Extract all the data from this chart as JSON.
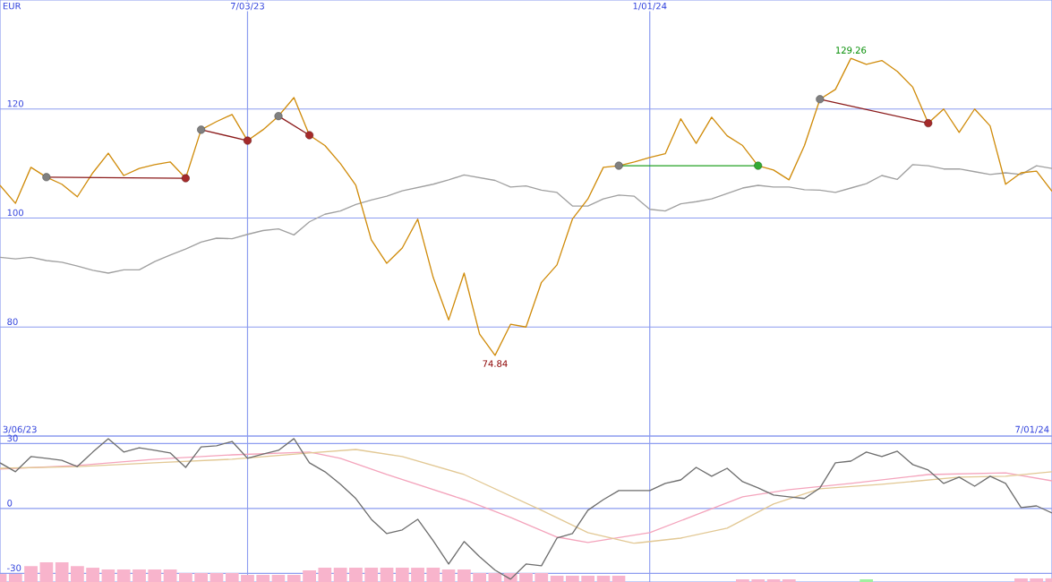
{
  "chart_data": [
    {
      "type": "line",
      "ylabel": "EUR",
      "grid": true,
      "x": [
        "2023-03-13",
        "2023-03-20",
        "2023-03-27",
        "2023-04-03",
        "2023-04-10",
        "2023-04-17",
        "2023-04-24",
        "2023-05-01",
        "2023-05-08",
        "2023-05-15",
        "2023-05-22",
        "2023-05-29",
        "2023-06-05",
        "2023-06-12",
        "2023-06-19",
        "2023-06-26",
        "2023-07-03",
        "2023-07-10",
        "2023-07-17",
        "2023-07-24",
        "2023-07-31",
        "2023-08-07",
        "2023-08-14",
        "2023-08-21",
        "2023-08-28",
        "2023-09-04",
        "2023-09-11",
        "2023-09-18",
        "2023-09-25",
        "2023-10-02",
        "2023-10-09",
        "2023-10-16",
        "2023-10-23",
        "2023-10-30",
        "2023-11-06",
        "2023-11-13",
        "2023-11-20",
        "2023-11-27",
        "2023-12-04",
        "2023-12-11",
        "2023-12-18",
        "2023-12-25",
        "2024-01-01",
        "2024-01-08",
        "2024-01-15",
        "2024-01-22",
        "2024-01-29",
        "2024-02-05",
        "2024-02-12",
        "2024-02-19",
        "2024-02-26",
        "2024-03-04",
        "2024-03-11",
        "2024-03-18",
        "2024-03-25",
        "2024-04-01",
        "2024-04-08",
        "2024-04-15",
        "2024-04-22",
        "2024-04-29",
        "2024-05-06",
        "2024-05-13",
        "2024-05-20",
        "2024-05-27",
        "2024-06-03",
        "2024-06-10",
        "2024-06-17",
        "2024-06-24",
        "2024-07-01"
      ],
      "xlim": [
        "2023-03-13",
        "2024-07-01"
      ],
      "ylim": [
        60,
        140
      ],
      "xticks": [
        {
          "value": "2023-07-03",
          "label": "7/03/23"
        },
        {
          "value": "2024-01-01",
          "label": "1/01/24"
        }
      ],
      "yticks": [
        80,
        100,
        120
      ],
      "annotations": [
        {
          "text": "129.26",
          "x": "2024-04-01",
          "y": 129.26
        },
        {
          "text": "74.84",
          "x": "2023-10-23",
          "y": 74.84
        }
      ],
      "series": [
        {
          "color": "#a0a0a0",
          "values": [
            92.8,
            92.5,
            92.8,
            92.2,
            91.9,
            91.2,
            90.4,
            89.9,
            90.5,
            90.5,
            92.0,
            93.2,
            94.3,
            95.6,
            96.3,
            96.2,
            97.0,
            97.7,
            98.0,
            96.9,
            99.3,
            100.7,
            101.3,
            102.5,
            103.3,
            104.0,
            105.0,
            105.6,
            106.2,
            107.0,
            107.9,
            107.4,
            106.9,
            105.7,
            105.9,
            105.1,
            104.7,
            102.2,
            102.2,
            103.5,
            104.2,
            104.0,
            101.6,
            101.3,
            102.6,
            103.0,
            103.5,
            104.5,
            105.5,
            106.0,
            105.7,
            105.7,
            105.2,
            105.1,
            104.7,
            105.5,
            106.3,
            107.8,
            107.1,
            109.8,
            109.6,
            109.0,
            109.0,
            108.5,
            108.0,
            108.3,
            108.0,
            109.6,
            109.1
          ]
        },
        {
          "color": "#d08c0c",
          "values": [
            106.0,
            102.7,
            109.3,
            107.5,
            106.2,
            103.9,
            108.3,
            111.9,
            107.8,
            109.1,
            109.8,
            110.3,
            107.3,
            116.2,
            117.7,
            119.0,
            114.2,
            116.2,
            118.7,
            122.1,
            115.2,
            113.3,
            110.0,
            106.0,
            96.0,
            91.7,
            94.5,
            99.8,
            89.1,
            81.3,
            89.9,
            78.7,
            74.8,
            80.5,
            80.0,
            88.2,
            91.4,
            99.8,
            103.5,
            109.3,
            109.6,
            110.3,
            111.1,
            111.8,
            118.2,
            113.7,
            118.5,
            115.1,
            113.3,
            109.6,
            108.8,
            107.0,
            113.3,
            121.8,
            123.6,
            129.3,
            128.2,
            128.9,
            126.9,
            124.0,
            117.4,
            120.0,
            115.7,
            120.0,
            116.9,
            106.2,
            108.3,
            108.6,
            104.9
          ]
        },
        {
          "color": "#8b1a1a",
          "marker": "circle",
          "x": [
            "2023-04-03",
            "2023-06-05"
          ],
          "values": [
            107.5,
            107.3
          ],
          "colors": [
            "#808080",
            "#a52a2a"
          ]
        },
        {
          "color": "#8b1a1a",
          "marker": "circle",
          "x": [
            "2023-06-12",
            "2023-07-03"
          ],
          "values": [
            116.2,
            114.2
          ],
          "colors": [
            "#808080",
            "#a52a2a"
          ]
        },
        {
          "color": "#8b1a1a",
          "marker": "circle",
          "x": [
            "2023-07-17",
            "2023-07-31"
          ],
          "values": [
            118.7,
            115.2
          ],
          "colors": [
            "#808080",
            "#a52a2a"
          ]
        },
        {
          "color": "#22a022",
          "marker": "circle",
          "x": [
            "2023-12-18",
            "2024-02-19"
          ],
          "values": [
            109.6,
            109.6
          ],
          "colors": [
            "#808080",
            "#33aa33"
          ]
        },
        {
          "color": "#8b1a1a",
          "marker": "circle",
          "x": [
            "2024-03-18",
            "2024-05-06"
          ],
          "values": [
            121.8,
            117.4
          ],
          "colors": [
            "#808080",
            "#a52a2a"
          ]
        }
      ]
    },
    {
      "type": "line",
      "grid": true,
      "tick_labels": "y",
      "x": [
        "2023-03-13",
        "2023-03-20",
        "2023-03-27",
        "2023-04-03",
        "2023-04-10",
        "2023-04-17",
        "2023-04-24",
        "2023-05-01",
        "2023-05-08",
        "2023-05-15",
        "2023-05-22",
        "2023-05-29",
        "2023-06-05",
        "2023-06-12",
        "2023-06-19",
        "2023-06-26",
        "2023-07-03",
        "2023-07-10",
        "2023-07-17",
        "2023-07-24",
        "2023-07-31",
        "2023-08-07",
        "2023-08-14",
        "2023-08-21",
        "2023-08-28",
        "2023-09-04",
        "2023-09-11",
        "2023-09-18",
        "2023-09-25",
        "2023-10-02",
        "2023-10-09",
        "2023-10-16",
        "2023-10-23",
        "2023-10-30",
        "2023-11-06",
        "2023-11-13",
        "2023-11-20",
        "2023-11-27",
        "2023-12-04",
        "2023-12-11",
        "2023-12-18",
        "2023-12-25",
        "2024-01-01",
        "2024-01-08",
        "2024-01-15",
        "2024-01-22",
        "2024-01-29",
        "2024-02-05",
        "2024-02-12",
        "2024-02-19",
        "2024-02-26",
        "2024-03-04",
        "2024-03-11",
        "2024-03-18",
        "2024-03-25",
        "2024-04-01",
        "2024-04-08",
        "2024-04-15",
        "2024-04-22",
        "2024-04-29",
        "2024-05-06",
        "2024-05-13",
        "2024-05-20",
        "2024-05-27",
        "2024-06-03",
        "2024-06-10",
        "2024-06-17",
        "2024-06-24",
        "2024-07-01"
      ],
      "xlim": [
        "2023-03-13",
        "2024-07-01"
      ],
      "ylim": [
        -34,
        33.5
      ],
      "xticks": [
        {
          "value": "2023-07-03",
          "label": null
        },
        {
          "value": "2024-01-01",
          "label": null
        }
      ],
      "yticks": [
        -30,
        0,
        30
      ],
      "annotations": [
        "3/06/23",
        "7/01/24"
      ],
      "series": [
        {
          "type": "bar",
          "colors": [
            "#f8b4cc",
            "#f8b4cc",
            "#f8b4cc",
            "#f8b4cc",
            "#f8b4cc",
            "#f8b4cc",
            "#f8b4cc",
            "#f8b4cc",
            "#f8b4cc",
            "#f8b4cc",
            "#f8b4cc",
            "#f8b4cc",
            "#f8b4cc",
            "#f8b4cc",
            "#f8b4cc",
            "#f8b4cc",
            "#f8b4cc",
            "#f8b4cc",
            "#f8b4cc",
            "#f8b4cc",
            "#f8b4cc",
            "#f8b4cc",
            "#f8b4cc",
            "#f8b4cc",
            "#f8b4cc",
            "#f8b4cc",
            "#f8b4cc",
            "#f8b4cc",
            "#f8b4cc",
            "#f8b4cc",
            "#f8b4cc",
            "#f8b4cc",
            "#f8b4cc",
            "#f8b4cc",
            "#f8b4cc",
            "#f8b4cc",
            "#f8b4cc",
            "#f8b4cc",
            "#f8b4cc",
            "#f8b4cc",
            "#f8b4cc",
            null,
            null,
            null,
            null,
            null,
            null,
            null,
            "#f8b4cc",
            "#f8b4cc",
            "#f8b4cc",
            "#f8b4cc",
            null,
            null,
            null,
            null,
            "#a0f0a0",
            null,
            null,
            null,
            null,
            null,
            null,
            null,
            null,
            null,
            "#f8b4cc",
            "#f8b4cc",
            "#f8b4cc"
          ],
          "base": [
            -34,
            -34,
            -34,
            -34,
            -34,
            -34,
            -34,
            -34,
            -34,
            -34,
            -34,
            -34,
            -34,
            -34,
            -34,
            -34,
            -34,
            -34,
            -34,
            -34,
            -34,
            -34,
            -34,
            -34,
            -34,
            -34,
            -34,
            -34,
            -34,
            -34,
            -34,
            -34,
            -34,
            -34,
            -34,
            -34,
            -34,
            -34,
            -34,
            -34,
            -34,
            null,
            null,
            null,
            null,
            null,
            null,
            null,
            -34,
            -34,
            -34,
            -34,
            null,
            null,
            null,
            null,
            -34,
            null,
            null,
            null,
            null,
            null,
            null,
            null,
            null,
            null,
            -34,
            -34,
            -34
          ],
          "values": [
            3.7,
            3.7,
            7.4,
            9.1,
            9.1,
            7.4,
            6.6,
            5.8,
            5.8,
            5.8,
            5.8,
            5.8,
            4.1,
            4.1,
            4.1,
            4.1,
            3.3,
            3.3,
            3.3,
            3.3,
            5.4,
            6.6,
            6.6,
            6.6,
            6.6,
            6.6,
            6.6,
            6.6,
            6.6,
            5.8,
            5.8,
            4.1,
            4.1,
            4.1,
            4.1,
            4.1,
            2.9,
            2.9,
            2.9,
            2.9,
            2.9,
            null,
            null,
            null,
            null,
            null,
            null,
            null,
            1.2,
            1.2,
            1.2,
            1.2,
            null,
            null,
            null,
            null,
            1.2,
            null,
            null,
            null,
            null,
            null,
            null,
            null,
            null,
            null,
            1.7,
            1.7,
            1.7
          ]
        },
        {
          "color": "#f4a4bc",
          "x": [
            "2023-03-13",
            "2023-04-17",
            "2023-05-22",
            "2023-06-26",
            "2023-07-31",
            "2023-08-14",
            "2023-09-04",
            "2023-10-09",
            "2023-10-30",
            "2023-11-20",
            "2023-12-04",
            "2024-01-01",
            "2024-01-22",
            "2024-02-12",
            "2024-03-04",
            "2024-04-01",
            "2024-05-06",
            "2024-06-10",
            "2024-07-01"
          ],
          "values": [
            18.2,
            19.9,
            22.8,
            24.8,
            26.1,
            23.2,
            15.7,
            4.1,
            -4.1,
            -13.2,
            -15.7,
            -11.2,
            -2.9,
            5.4,
            8.7,
            11.6,
            15.7,
            16.5,
            12.8
          ]
        },
        {
          "color": "#e2c894",
          "x": [
            "2023-03-13",
            "2023-04-17",
            "2023-05-22",
            "2023-06-26",
            "2023-07-31",
            "2023-08-21",
            "2023-09-11",
            "2023-10-09",
            "2023-11-13",
            "2023-12-04",
            "2023-12-25",
            "2024-01-15",
            "2024-02-05",
            "2024-02-26",
            "2024-03-18",
            "2024-04-15",
            "2024-05-20",
            "2024-06-10",
            "2024-07-01"
          ],
          "values": [
            18.6,
            19.4,
            21.1,
            22.8,
            25.7,
            27.3,
            24.0,
            15.7,
            -0.8,
            -11.2,
            -16.1,
            -13.7,
            -9.1,
            2.1,
            9.1,
            11.2,
            14.5,
            14.9,
            17.0
          ]
        },
        {
          "color": "#6e6e6e",
          "values": [
            21.1,
            17.0,
            24.0,
            23.2,
            22.3,
            19.4,
            26.1,
            32.3,
            26.1,
            28.1,
            26.9,
            25.7,
            19.0,
            28.5,
            29.0,
            31.0,
            23.2,
            25.2,
            26.9,
            32.3,
            21.1,
            17.0,
            11.2,
            4.6,
            -5.0,
            -11.6,
            -9.9,
            -5.0,
            -14.9,
            -25.7,
            -15.3,
            -22.3,
            -28.5,
            -32.7,
            -25.7,
            -26.5,
            -13.7,
            -11.6,
            -0.8,
            4.1,
            8.3,
            8.3,
            8.3,
            11.6,
            13.2,
            19.0,
            14.9,
            18.6,
            12.4,
            9.5,
            6.2,
            5.4,
            4.6,
            9.5,
            21.1,
            21.9,
            26.1,
            24.0,
            26.5,
            20.3,
            17.8,
            11.6,
            14.5,
            10.3,
            14.9,
            11.6,
            0.4,
            1.2,
            -2.1
          ]
        }
      ]
    }
  ]
}
